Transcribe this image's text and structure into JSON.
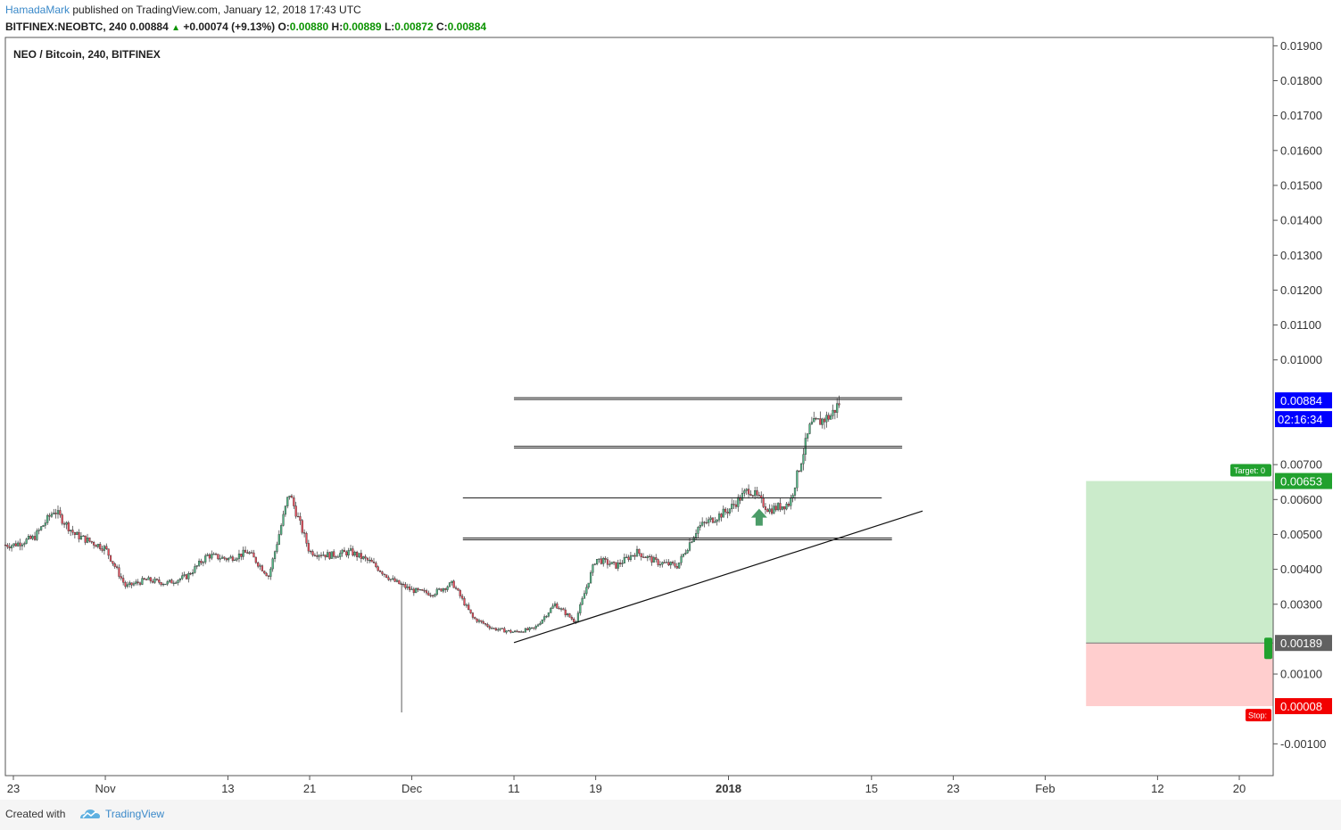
{
  "header": {
    "author": "HamadaMark",
    "published": "published on TradingView.com, January 12, 2018 17:43 UTC",
    "symbol": "BITFINEX:NEOBTC, 240",
    "last": "0.00884",
    "change_arrow": "▲",
    "change": "+0.00074 (+9.13%)",
    "o_label": "O:",
    "o_value": "0.00880",
    "h_label": "H:",
    "h_value": "0.00889",
    "l_label": "L:",
    "l_value": "0.00872",
    "c_label": "C:",
    "c_value": "0.00884"
  },
  "legend": {
    "title": "NEO / Bitcoin, 240, BITFINEX"
  },
  "footer": {
    "created_with": "Created with",
    "brand": "TradingView",
    "logo_icon": "tradingview-cloud-icon"
  },
  "colors": {
    "up": "#53b987",
    "down": "#eb4d5c",
    "candle_border": "#333333",
    "price_tag": "#0000ff",
    "target": "#21a12e",
    "stop": "#f20000",
    "entry": "#616161",
    "profit_zone": "#cbebcb",
    "loss_zone": "#ffcece",
    "arrow": "#4b9c68"
  },
  "chart_data": {
    "type": "candlestick",
    "ylim": [
      -0.0015,
      0.0195
    ],
    "y_ticks": [
      "0.01900",
      "0.01800",
      "0.01700",
      "0.01600",
      "0.01500",
      "0.01400",
      "0.01300",
      "0.01200",
      "0.01100",
      "0.01000",
      "0.00700",
      "0.00600",
      "0.00500",
      "0.00400",
      "0.00300",
      "0.00100",
      "-0.00100"
    ],
    "x_ticks": [
      {
        "label": "23",
        "date": "2017-10-23"
      },
      {
        "label": "Nov",
        "date": "2017-11-01"
      },
      {
        "label": "13",
        "date": "2017-11-13"
      },
      {
        "label": "21",
        "date": "2017-11-21"
      },
      {
        "label": "Dec",
        "date": "2017-12-01"
      },
      {
        "label": "11",
        "date": "2017-12-11"
      },
      {
        "label": "19",
        "date": "2017-12-19"
      },
      {
        "label": "2018",
        "date": "2018-01-01",
        "bold": true
      },
      {
        "label": "15",
        "date": "2018-01-15"
      },
      {
        "label": "23",
        "date": "2018-01-23"
      },
      {
        "label": "Feb",
        "date": "2018-02-01"
      },
      {
        "label": "12",
        "date": "2018-02-12"
      },
      {
        "label": "20",
        "date": "2018-02-20"
      }
    ],
    "price_path": [
      [
        "2017-10-23",
        0.0047
      ],
      [
        "2017-10-25",
        0.0049
      ],
      [
        "2017-10-27",
        0.0057
      ],
      [
        "2017-10-29",
        0.005
      ],
      [
        "2017-11-01",
        0.0046
      ],
      [
        "2017-11-03",
        0.0035
      ],
      [
        "2017-11-05",
        0.0037
      ],
      [
        "2017-11-07",
        0.0036
      ],
      [
        "2017-11-09",
        0.0038
      ],
      [
        "2017-11-11",
        0.0044
      ],
      [
        "2017-11-13",
        0.0043
      ],
      [
        "2017-11-15",
        0.0045
      ],
      [
        "2017-11-17",
        0.0038
      ],
      [
        "2017-11-19",
        0.0062
      ],
      [
        "2017-11-21",
        0.0045
      ],
      [
        "2017-11-23",
        0.0044
      ],
      [
        "2017-11-25",
        0.0045
      ],
      [
        "2017-11-27",
        0.0042
      ],
      [
        "2017-11-29",
        0.0037
      ],
      [
        "2017-12-01",
        0.0034
      ],
      [
        "2017-12-03",
        0.0033
      ],
      [
        "2017-12-05",
        0.0036
      ],
      [
        "2017-12-07",
        0.0026
      ],
      [
        "2017-12-09",
        0.0023
      ],
      [
        "2017-12-11",
        0.0022
      ],
      [
        "2017-12-13",
        0.0023
      ],
      [
        "2017-12-15",
        0.003
      ],
      [
        "2017-12-17",
        0.0025
      ],
      [
        "2017-12-19",
        0.0043
      ],
      [
        "2017-12-21",
        0.0041
      ],
      [
        "2017-12-23",
        0.0045
      ],
      [
        "2017-12-25",
        0.0042
      ],
      [
        "2017-12-27",
        0.0041
      ],
      [
        "2017-12-29",
        0.0052
      ],
      [
        "2018-01-01",
        0.0057
      ],
      [
        "2018-01-03",
        0.0063
      ],
      [
        "2018-01-05",
        0.0057
      ],
      [
        "2018-01-07",
        0.0059
      ],
      [
        "2018-01-09",
        0.0081
      ],
      [
        "2018-01-11",
        0.0084
      ],
      [
        "2018-01-12",
        0.00884
      ]
    ],
    "wicks": [
      {
        "date": "2017-11-30",
        "low": -0.0001,
        "high": 0.0036
      }
    ],
    "annotations": {
      "horizontal_lines": [
        {
          "price": 0.00889,
          "from": "2017-12-11",
          "to": "2018-01-18"
        },
        {
          "price": 0.0075,
          "from": "2017-12-11",
          "to": "2018-01-18"
        },
        {
          "price": 0.00602,
          "from": "2017-12-06",
          "to": "2018-01-16"
        },
        {
          "price": 0.00487,
          "from": "2017-12-06",
          "to": "2018-01-17"
        }
      ],
      "trendline": {
        "from": [
          "2017-12-11",
          0.0019
        ],
        "to": [
          "2018-01-20",
          0.00567
        ]
      },
      "up_arrow": {
        "date": "2018-01-04",
        "price": 0.00525
      },
      "position": {
        "from": "2018-02-05",
        "to": "2018-02-21",
        "entry": 0.00189,
        "target": 0.00653,
        "stop": 8e-05
      }
    },
    "price_labels": {
      "last": "0.00884",
      "countdown": "02:16:34",
      "target_tag": "0.00653",
      "target_label": "Target: 0",
      "entry_tag": "0.00189",
      "stop_tag": "0.00008",
      "stop_label": "Stop:"
    }
  }
}
